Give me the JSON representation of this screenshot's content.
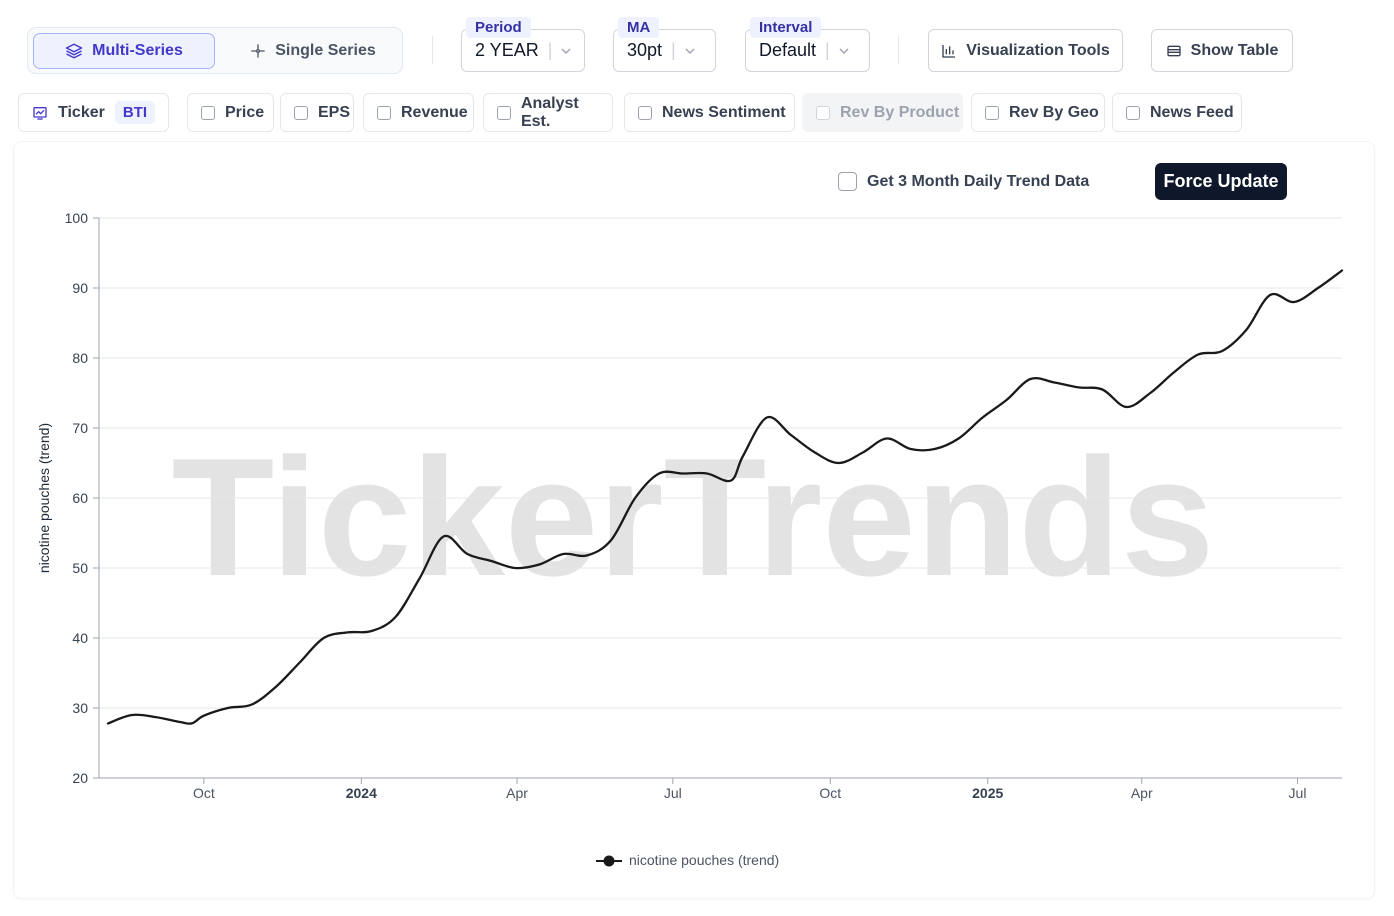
{
  "toolbar": {
    "multi_series_label": "Multi-Series",
    "single_series_label": "Single Series",
    "period": {
      "tag": "Period",
      "value": "2 YEAR"
    },
    "ma": {
      "tag": "MA",
      "value": "30pt"
    },
    "interval": {
      "tag": "Interval",
      "value": "Default"
    },
    "visualization_tools_label": "Visualization Tools",
    "show_table_label": "Show Table"
  },
  "filters": {
    "ticker_label": "Ticker",
    "ticker_value": "BTI",
    "items": [
      {
        "label": "Price",
        "enabled": true
      },
      {
        "label": "EPS",
        "enabled": true
      },
      {
        "label": "Revenue",
        "enabled": true
      },
      {
        "label": "Analyst Est.",
        "enabled": true
      },
      {
        "label": "News Sentiment",
        "enabled": true
      },
      {
        "label": "Rev By Product",
        "enabled": false
      },
      {
        "label": "Rev By Geo",
        "enabled": true
      },
      {
        "label": "News Feed",
        "enabled": true
      }
    ]
  },
  "panel": {
    "trend_checkbox_label": "Get 3 Month Daily Trend Data",
    "force_update_label": "Force Update",
    "watermark": "TickerTrends"
  },
  "colors": {
    "accent": "#4338ca",
    "line": "#1a1a1a",
    "grid": "#e5e7eb",
    "force_button": "#0f172a"
  },
  "chart_data": {
    "type": "line",
    "ylabel": "nicotine pouches  (trend)",
    "xlabel": "",
    "ylim": [
      20,
      100
    ],
    "xlim": [
      "2023-08-06",
      "2025-07-27"
    ],
    "yticks": [
      20,
      30,
      40,
      50,
      60,
      70,
      80,
      90,
      100
    ],
    "xticks": [
      {
        "date": "2023-10-01",
        "label": "Oct",
        "bold": false
      },
      {
        "date": "2024-01-01",
        "label": "2024",
        "bold": true
      },
      {
        "date": "2024-04-01",
        "label": "Apr",
        "bold": false
      },
      {
        "date": "2024-07-01",
        "label": "Jul",
        "bold": false
      },
      {
        "date": "2024-10-01",
        "label": "Oct",
        "bold": false
      },
      {
        "date": "2025-01-01",
        "label": "2025",
        "bold": true
      },
      {
        "date": "2025-04-01",
        "label": "Apr",
        "bold": false
      },
      {
        "date": "2025-07-01",
        "label": "Jul",
        "bold": false
      }
    ],
    "grid": true,
    "legend_position": "bottom-center",
    "series": [
      {
        "name": "nicotine pouches  (trend)",
        "x": [
          "2023-08-06",
          "2023-08-20",
          "2023-09-03",
          "2023-09-17",
          "2023-09-24",
          "2023-10-01",
          "2023-10-15",
          "2023-10-29",
          "2023-11-12",
          "2023-11-26",
          "2023-12-10",
          "2023-12-24",
          "2024-01-07",
          "2024-01-21",
          "2024-02-04",
          "2024-02-18",
          "2024-03-03",
          "2024-03-17",
          "2024-03-31",
          "2024-04-14",
          "2024-04-28",
          "2024-05-12",
          "2024-05-26",
          "2024-06-09",
          "2024-06-23",
          "2024-07-07",
          "2024-07-21",
          "2024-08-04",
          "2024-08-11",
          "2024-08-25",
          "2024-09-08",
          "2024-09-22",
          "2024-10-06",
          "2024-10-20",
          "2024-11-03",
          "2024-11-17",
          "2024-12-01",
          "2024-12-15",
          "2024-12-29",
          "2025-01-12",
          "2025-01-26",
          "2025-02-09",
          "2025-02-23",
          "2025-03-09",
          "2025-03-23",
          "2025-04-06",
          "2025-04-20",
          "2025-05-04",
          "2025-05-18",
          "2025-06-01",
          "2025-06-15",
          "2025-06-29",
          "2025-07-13",
          "2025-07-27"
        ],
        "y": [
          27.8,
          29,
          28.7,
          28,
          27.8,
          28.9,
          30,
          30.5,
          33,
          36.5,
          40,
          40.8,
          41,
          43,
          48.5,
          54.5,
          52,
          51,
          50,
          50.5,
          52,
          51.8,
          54,
          60,
          63.5,
          63.5,
          63.5,
          62.5,
          66,
          71.5,
          69,
          66.5,
          65,
          66.5,
          68.5,
          67,
          67,
          68.5,
          71.5,
          74,
          77,
          76.5,
          75.8,
          75.5,
          73,
          75,
          78,
          80.5,
          81,
          84,
          89,
          88,
          90,
          92.5
        ]
      }
    ]
  }
}
